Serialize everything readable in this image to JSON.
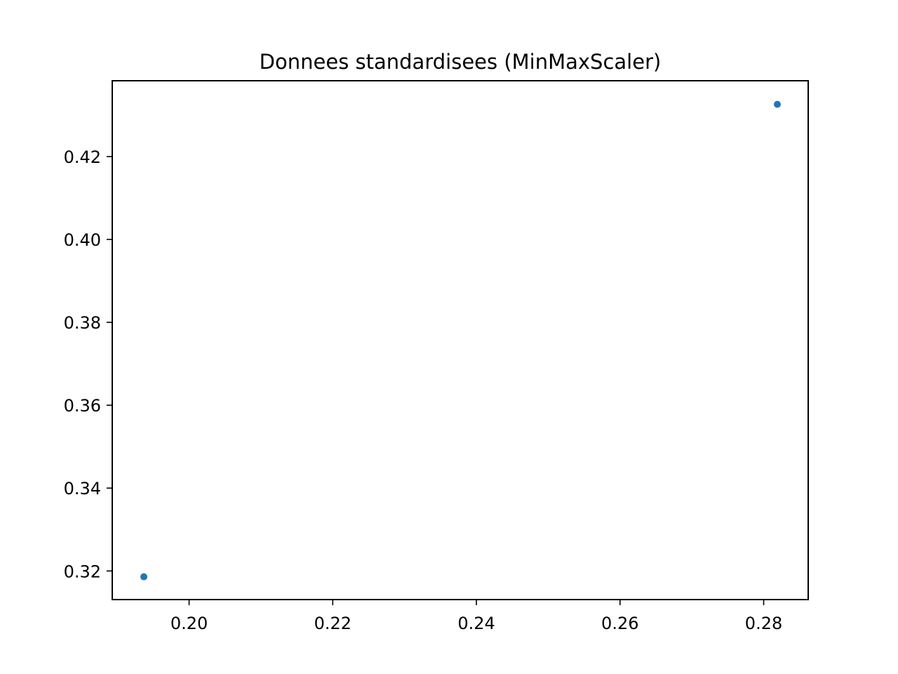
{
  "chart_data": {
    "type": "scatter",
    "title": "Donnees standardisees (MinMaxScaler)",
    "xlabel": "",
    "ylabel": "",
    "xlim": [
      0.1893,
      0.2862
    ],
    "ylim": [
      0.3131,
      0.4383
    ],
    "x_ticks": [
      0.2,
      0.22,
      0.24,
      0.26,
      0.28
    ],
    "x_tick_labels": [
      "0.20",
      "0.22",
      "0.24",
      "0.26",
      "0.28"
    ],
    "y_ticks": [
      0.32,
      0.34,
      0.36,
      0.38,
      0.4,
      0.42
    ],
    "y_tick_labels": [
      "0.32",
      "0.34",
      "0.36",
      "0.38",
      "0.40",
      "0.42"
    ],
    "grid": false,
    "series": [
      {
        "color": "#1f77b4",
        "points": [
          {
            "x": 0.1937,
            "y": 0.3186
          },
          {
            "x": 0.2819,
            "y": 0.4326
          }
        ]
      }
    ]
  }
}
